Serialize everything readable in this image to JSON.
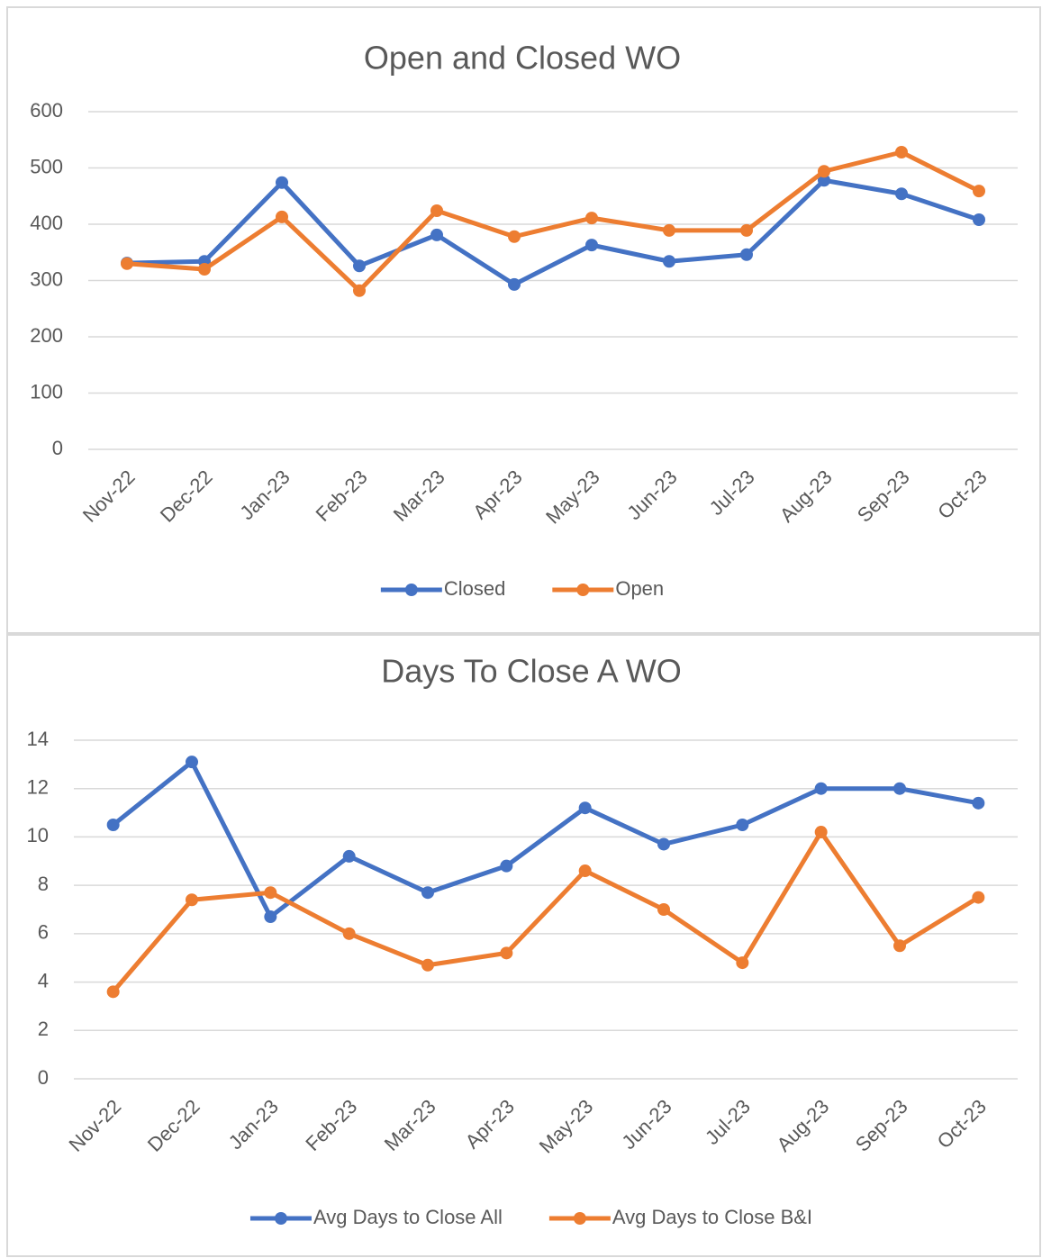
{
  "chart_data": [
    {
      "type": "line",
      "title": "Open and Closed WO",
      "categories": [
        "Nov-22",
        "Dec-22",
        "Jan-23",
        "Feb-23",
        "Mar-23",
        "Apr-23",
        "May-23",
        "Jun-23",
        "Jul-23",
        "Aug-23",
        "Sep-23",
        "Oct-23"
      ],
      "series": [
        {
          "name": "Closed",
          "color": "#4472c4",
          "values": [
            331,
            334,
            474,
            326,
            381,
            293,
            363,
            334,
            346,
            478,
            454,
            408
          ]
        },
        {
          "name": "Open",
          "color": "#ed7d31",
          "values": [
            330,
            320,
            413,
            282,
            424,
            378,
            411,
            389,
            389,
            494,
            528,
            459
          ]
        }
      ],
      "ylim": [
        0,
        600
      ],
      "yticks": [
        0,
        100,
        200,
        300,
        400,
        500,
        600
      ],
      "grid": true,
      "legend": "bottom"
    },
    {
      "type": "line",
      "title": "Days To Close A WO",
      "categories": [
        "Nov-22",
        "Dec-22",
        "Jan-23",
        "Feb-23",
        "Mar-23",
        "Apr-23",
        "May-23",
        "Jun-23",
        "Jul-23",
        "Aug-23",
        "Sep-23",
        "Oct-23"
      ],
      "series": [
        {
          "name": "Avg Days to Close All",
          "color": "#4472c4",
          "values": [
            10.5,
            13.1,
            6.7,
            9.2,
            7.7,
            8.8,
            11.2,
            9.7,
            10.5,
            12.0,
            12.0,
            11.4
          ]
        },
        {
          "name": "Avg Days to Close B&I",
          "color": "#ed7d31",
          "values": [
            3.6,
            7.4,
            7.7,
            6.0,
            4.7,
            5.2,
            8.6,
            7.0,
            4.8,
            10.2,
            5.5,
            7.5
          ]
        }
      ],
      "ylim": [
        0,
        14
      ],
      "yticks": [
        0,
        2,
        4,
        6,
        8,
        10,
        12,
        14
      ],
      "grid": true,
      "legend": "bottom"
    }
  ]
}
